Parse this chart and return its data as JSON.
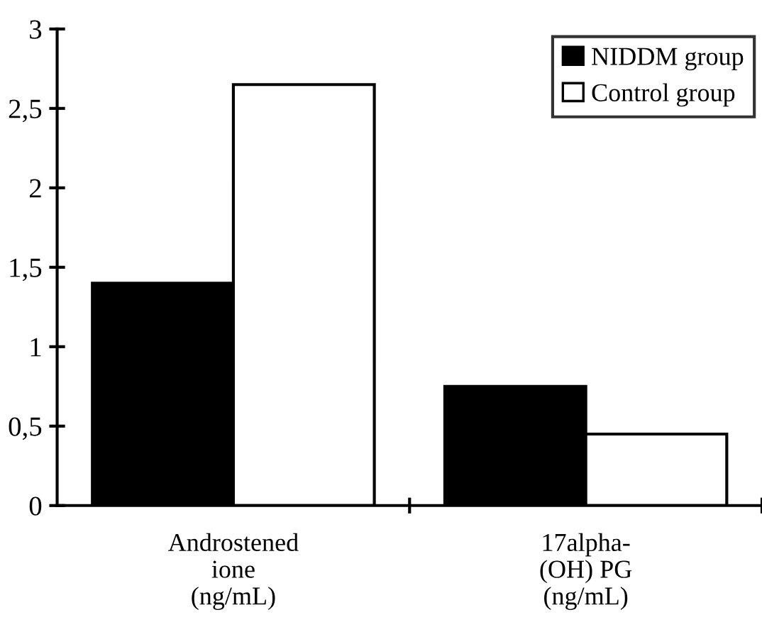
{
  "chart_data": {
    "type": "bar",
    "categories": [
      "Androstened\nione\n(ng/mL)",
      "17alpha-\n(OH) PG\n(ng/mL)"
    ],
    "series": [
      {
        "name": "NIDDM group",
        "color": "#000000",
        "values": [
          1.4,
          0.75
        ]
      },
      {
        "name": "Control group",
        "color": "#ffffff",
        "values": [
          2.65,
          0.45
        ]
      }
    ],
    "ylim": [
      0,
      3
    ],
    "yticks": [
      0,
      {
        "value": 0.5,
        "label": "0,5"
      },
      1,
      {
        "value": 1.5,
        "label": "1,5"
      },
      2,
      {
        "value": 2.5,
        "label": "2,5"
      },
      3
    ],
    "grid": false,
    "legend": "top right"
  }
}
